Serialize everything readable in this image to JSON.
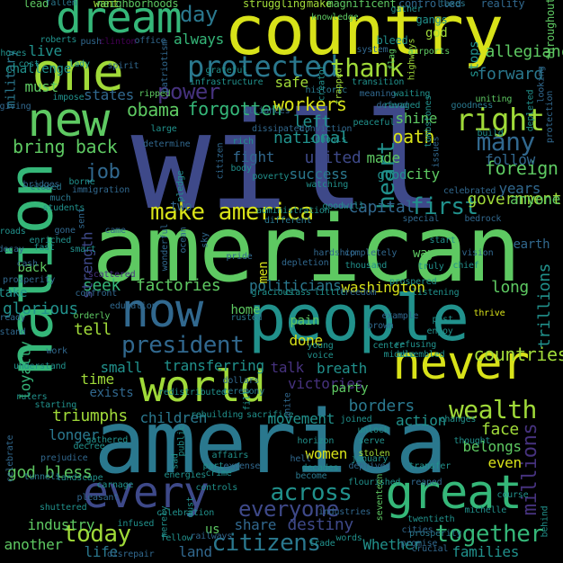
{
  "palette": {
    "background": "#000000",
    "yellow": "#d8e219",
    "lime": "#a0da39",
    "green": "#5ec962",
    "teal_green": "#35b779",
    "teal": "#21918c",
    "blue_teal": "#2a788e",
    "blue": "#31688e",
    "indigo": "#3e4989",
    "purple": "#46327e",
    "dark_purple": "#440154"
  },
  "words": [
    {
      "t": "will",
      "c": "indigo"
    },
    {
      "t": "american",
      "c": "green"
    },
    {
      "t": "america",
      "c": "blue_teal"
    },
    {
      "t": "country",
      "c": "yellow"
    },
    {
      "t": "people",
      "c": "teal"
    },
    {
      "t": "nation",
      "c": "teal_green"
    },
    {
      "t": "one",
      "c": "lime"
    },
    {
      "t": "dream",
      "c": "teal_green"
    },
    {
      "t": "new",
      "c": "green"
    },
    {
      "t": "great",
      "c": "teal_green"
    },
    {
      "t": "every",
      "c": "indigo"
    },
    {
      "t": "never",
      "c": "yellow"
    },
    {
      "t": "world",
      "c": "lime"
    },
    {
      "t": "now",
      "c": "blue"
    },
    {
      "t": "protected",
      "c": "blue_teal"
    },
    {
      "t": "right",
      "c": "lime"
    },
    {
      "t": "thank",
      "c": "lime"
    },
    {
      "t": "many",
      "c": "blue"
    },
    {
      "t": "president",
      "c": "blue"
    },
    {
      "t": "make america",
      "c": "yellow"
    },
    {
      "t": "citizens",
      "c": "blue_teal"
    },
    {
      "t": "today",
      "c": "lime"
    },
    {
      "t": "together",
      "c": "teal_green"
    },
    {
      "t": "across",
      "c": "teal"
    },
    {
      "t": "everyone",
      "c": "indigo"
    },
    {
      "t": "wealth",
      "c": "lime"
    },
    {
      "t": "heart",
      "c": "teal"
    },
    {
      "t": "first",
      "c": "teal"
    },
    {
      "t": "job",
      "c": "blue"
    },
    {
      "t": "day",
      "c": "blue_teal"
    },
    {
      "t": "power",
      "c": "purple"
    },
    {
      "t": "obama",
      "c": "green"
    },
    {
      "t": "forgotten",
      "c": "teal_green"
    },
    {
      "t": "workers",
      "c": "yellow"
    },
    {
      "t": "left",
      "c": "teal"
    },
    {
      "t": "national",
      "c": "teal"
    },
    {
      "t": "united",
      "c": "indigo"
    },
    {
      "t": "bring back",
      "c": "green"
    },
    {
      "t": "foreign",
      "c": "green"
    },
    {
      "t": "government",
      "c": "lime"
    },
    {
      "t": "forward",
      "c": "blue_teal"
    },
    {
      "t": "allegiance",
      "c": "green"
    },
    {
      "t": "must",
      "c": "green"
    },
    {
      "t": "always",
      "c": "teal_green"
    },
    {
      "t": "states",
      "c": "blue"
    },
    {
      "t": "fight",
      "c": "blue"
    },
    {
      "t": "oath",
      "c": "yellow"
    },
    {
      "t": "made",
      "c": "green"
    },
    {
      "t": "success",
      "c": "blue_teal"
    },
    {
      "t": "city",
      "c": "green"
    },
    {
      "t": "capital",
      "c": "blue"
    },
    {
      "t": "follow",
      "c": "blue"
    },
    {
      "t": "years",
      "c": "blue"
    },
    {
      "t": "anyone",
      "c": "green"
    },
    {
      "t": "earth",
      "c": "blue"
    },
    {
      "t": "glorious",
      "c": "teal"
    },
    {
      "t": "seek",
      "c": "teal_green"
    },
    {
      "t": "factories",
      "c": "green"
    },
    {
      "t": "politicians",
      "c": "blue_teal"
    },
    {
      "t": "washington",
      "c": "yellow"
    },
    {
      "t": "tell",
      "c": "lime"
    },
    {
      "t": "long",
      "c": "green"
    },
    {
      "t": "countries",
      "c": "lime"
    },
    {
      "t": "small",
      "c": "teal"
    },
    {
      "t": "transferring",
      "c": "teal"
    },
    {
      "t": "breath",
      "c": "teal"
    },
    {
      "t": "victories",
      "c": "purple"
    },
    {
      "t": "party",
      "c": "green"
    },
    {
      "t": "talk",
      "c": "purple"
    },
    {
      "t": "borders",
      "c": "blue_teal"
    },
    {
      "t": "action",
      "c": "teal"
    },
    {
      "t": "children",
      "c": "blue_teal"
    },
    {
      "t": "movement",
      "c": "teal"
    },
    {
      "t": "triumphs",
      "c": "lime"
    },
    {
      "t": "longer",
      "c": "blue_teal"
    },
    {
      "t": "god bless",
      "c": "green"
    },
    {
      "t": "women",
      "c": "yellow"
    },
    {
      "t": "face",
      "c": "lime"
    },
    {
      "t": "belongs",
      "c": "green"
    },
    {
      "t": "even",
      "c": "yellow"
    },
    {
      "t": "destiny",
      "c": "indigo"
    },
    {
      "t": "share",
      "c": "blue"
    },
    {
      "t": "land",
      "c": "blue"
    },
    {
      "t": "life",
      "c": "blue_teal"
    },
    {
      "t": "another",
      "c": "green"
    },
    {
      "t": "Whether",
      "c": "teal"
    },
    {
      "t": "families",
      "c": "teal"
    },
    {
      "t": "industry",
      "c": "green"
    },
    {
      "t": "loyalty",
      "c": "teal_green"
    },
    {
      "t": "time",
      "c": "lime"
    },
    {
      "t": "exists",
      "c": "blue"
    },
    {
      "t": "done",
      "c": "yellow"
    },
    {
      "t": "pain",
      "c": "green"
    },
    {
      "t": "back",
      "c": "green"
    },
    {
      "t": "take",
      "c": "teal"
    },
    {
      "t": "safe",
      "c": "lime"
    },
    {
      "t": "strength",
      "c": "indigo"
    },
    {
      "t": "men",
      "c": "yellow"
    },
    {
      "t": "two",
      "c": "blue"
    },
    {
      "t": "good",
      "c": "teal"
    },
    {
      "t": "way",
      "c": "green"
    },
    {
      "t": "trillions",
      "c": "teal"
    },
    {
      "t": "shine",
      "c": "green"
    },
    {
      "t": "millions",
      "c": "purple"
    },
    {
      "t": "home",
      "c": "green"
    },
    {
      "t": "us",
      "c": "green"
    },
    {
      "t": "live",
      "c": "teal"
    },
    {
      "t": "military",
      "c": "blue_teal"
    },
    {
      "t": "challenge",
      "c": "teal"
    },
    {
      "t": "god",
      "c": "lime"
    },
    {
      "t": "stops",
      "c": "teal"
    },
    {
      "t": "lead",
      "c": "green"
    },
    {
      "t": "want",
      "c": "lime"
    },
    {
      "t": "neighborhoods",
      "c": "green"
    },
    {
      "t": "struggling",
      "c": "lime"
    },
    {
      "t": "make",
      "c": "lime"
    },
    {
      "t": "magnificent",
      "c": "green"
    },
    {
      "t": "controlled",
      "c": "blue"
    },
    {
      "t": "reality",
      "c": "blue"
    },
    {
      "t": "throughout",
      "c": "green"
    },
    {
      "t": "fallen",
      "c": "blue_teal"
    },
    {
      "t": "knowledge",
      "c": "green"
    },
    {
      "t": "gangs",
      "c": "teal"
    },
    {
      "t": "taxes",
      "c": "blue_teal"
    },
    {
      "t": "bleed",
      "c": "teal"
    },
    {
      "t": "flag",
      "c": "green"
    },
    {
      "t": "highways",
      "c": "lime"
    },
    {
      "t": "airports",
      "c": "green"
    },
    {
      "t": "system",
      "c": "blue"
    },
    {
      "t": "gather",
      "c": "teal"
    },
    {
      "t": "uniting",
      "c": "green"
    },
    {
      "t": "infrastructure",
      "c": "teal"
    },
    {
      "t": "grateful",
      "c": "teal"
    },
    {
      "t": "historic",
      "c": "blue_teal"
    },
    {
      "t": "transition",
      "c": "teal"
    },
    {
      "t": "meaning",
      "c": "blue"
    },
    {
      "t": "defend",
      "c": "blue"
    },
    {
      "t": "peaceful",
      "c": "teal"
    },
    {
      "t": "goodness",
      "c": "blue_teal"
    },
    {
      "t": "build",
      "c": "teal"
    },
    {
      "t": "celebrated",
      "c": "blue"
    },
    {
      "t": "bridges",
      "c": "blue"
    },
    {
      "t": "enriched",
      "c": "teal"
    },
    {
      "t": "roads",
      "c": "teal"
    },
    {
      "t": "decay",
      "c": "blue"
    },
    {
      "t": "cash",
      "c": "blue"
    },
    {
      "t": "confront",
      "c": "blue"
    },
    {
      "t": "education",
      "c": "blue"
    },
    {
      "t": "orderly",
      "c": "green"
    },
    {
      "t": "work",
      "c": "blue"
    },
    {
      "t": "understand",
      "c": "teal"
    },
    {
      "t": "starting",
      "c": "teal"
    },
    {
      "t": "celebrate",
      "c": "blue"
    },
    {
      "t": "decree",
      "c": "teal"
    },
    {
      "t": "gathered",
      "c": "teal"
    },
    {
      "t": "prejudice",
      "c": "blue"
    },
    {
      "t": "landscape",
      "c": "teal"
    },
    {
      "t": "tunnels",
      "c": "blue_teal"
    },
    {
      "t": "shuttered",
      "c": "teal"
    },
    {
      "t": "infused",
      "c": "teal"
    },
    {
      "t": "pleasant",
      "c": "blue"
    },
    {
      "t": "students",
      "c": "teal"
    },
    {
      "t": "scattered",
      "c": "purple"
    },
    {
      "t": "rusted",
      "c": "blue_teal"
    },
    {
      "t": "dollars",
      "c": "blue"
    },
    {
      "t": "ceremony",
      "c": "blue_teal"
    },
    {
      "t": "rebuilding",
      "c": "teal"
    },
    {
      "t": "crime",
      "c": "teal"
    },
    {
      "t": "controls",
      "c": "teal"
    },
    {
      "t": "expense",
      "c": "blue"
    },
    {
      "t": "affairs",
      "c": "teal"
    },
    {
      "t": "horizon",
      "c": "teal"
    },
    {
      "t": "serve",
      "c": "teal"
    },
    {
      "t": "transfer",
      "c": "teal"
    },
    {
      "t": "stolen",
      "c": "lime"
    },
    {
      "t": "deprived",
      "c": "blue"
    },
    {
      "t": "reaped",
      "c": "blue"
    },
    {
      "t": "become",
      "c": "blue_teal"
    },
    {
      "t": "flourished",
      "c": "teal"
    },
    {
      "t": "decades",
      "c": "teal"
    },
    {
      "t": "seventeen",
      "c": "green"
    },
    {
      "t": "twentieth",
      "c": "teal"
    },
    {
      "t": "prosperity",
      "c": "blue_teal"
    },
    {
      "t": "trade",
      "c": "teal"
    },
    {
      "t": "words",
      "c": "teal"
    },
    {
      "t": "course",
      "c": "teal"
    },
    {
      "t": "behind",
      "c": "teal"
    },
    {
      "t": "michelle",
      "c": "teal"
    },
    {
      "t": "railways",
      "c": "blue"
    },
    {
      "t": "promise",
      "c": "blue"
    },
    {
      "t": "cities",
      "c": "blue"
    },
    {
      "t": "crucial",
      "c": "blue"
    },
    {
      "t": "office",
      "c": "blue"
    },
    {
      "t": "push",
      "c": "blue"
    },
    {
      "t": "clinton",
      "c": "dark_purple"
    },
    {
      "t": "roberts",
      "c": "teal"
    },
    {
      "t": "shores",
      "c": "teal"
    },
    {
      "t": "impose",
      "c": "teal"
    },
    {
      "t": "giving",
      "c": "blue"
    },
    {
      "t": "cost",
      "c": "teal"
    },
    {
      "t": "lady",
      "c": "teal"
    },
    {
      "t": "ripped",
      "c": "green"
    },
    {
      "t": "large",
      "c": "teal"
    },
    {
      "t": "determine",
      "c": "blue"
    },
    {
      "t": "dissipated",
      "c": "blue"
    },
    {
      "t": "conviction",
      "c": "blue"
    },
    {
      "t": "rich",
      "c": "teal"
    },
    {
      "t": "body",
      "c": "teal"
    },
    {
      "t": "poverty",
      "c": "teal"
    },
    {
      "t": "watching",
      "c": "teal"
    },
    {
      "t": "goodwill",
      "c": "teal"
    },
    {
      "t": "special",
      "c": "blue"
    },
    {
      "t": "bedrock",
      "c": "blue"
    },
    {
      "t": "administration",
      "c": "teal"
    },
    {
      "t": "different",
      "c": "blue_teal"
    },
    {
      "t": "hardship",
      "c": "blue"
    },
    {
      "t": "completely",
      "c": "blue"
    },
    {
      "t": "thousand",
      "c": "teal"
    },
    {
      "t": "truly",
      "c": "teal"
    },
    {
      "t": "start",
      "c": "teal"
    },
    {
      "t": "vision",
      "c": "blue"
    },
    {
      "t": "chief",
      "c": "teal"
    },
    {
      "t": "prospered",
      "c": "teal"
    },
    {
      "t": "listening",
      "c": "teal"
    },
    {
      "t": "gracious",
      "c": "teal"
    },
    {
      "t": "class",
      "c": "teal"
    },
    {
      "t": "little",
      "c": "teal"
    },
    {
      "t": "freedom",
      "c": "blue"
    },
    {
      "t": "brown",
      "c": "blue"
    },
    {
      "t": "example",
      "c": "blue"
    },
    {
      "t": "enjoy",
      "c": "teal"
    },
    {
      "t": "past",
      "c": "teal"
    },
    {
      "t": "thrive",
      "c": "yellow"
    },
    {
      "t": "young",
      "c": "teal"
    },
    {
      "t": "voice",
      "c": "teal"
    },
    {
      "t": "center",
      "c": "teal"
    },
    {
      "t": "refusing",
      "c": "teal"
    },
    {
      "t": "assembled",
      "c": "teal"
    },
    {
      "t": "middle",
      "c": "teal"
    },
    {
      "t": "joined",
      "c": "teal"
    },
    {
      "t": "unlock",
      "c": "teal"
    },
    {
      "t": "changes",
      "c": "teal"
    },
    {
      "t": "thought",
      "c": "teal"
    },
    {
      "t": "industries",
      "c": "blue"
    },
    {
      "t": "hell",
      "c": "blue"
    },
    {
      "t": "january",
      "c": "teal"
    },
    {
      "t": "public",
      "c": "teal"
    },
    {
      "t": "energies",
      "c": "teal"
    },
    {
      "t": "celebration",
      "c": "teal"
    },
    {
      "t": "merely",
      "c": "teal"
    },
    {
      "t": "redistributed",
      "c": "teal"
    },
    {
      "t": "wonderful",
      "c": "blue"
    },
    {
      "t": "ocean",
      "c": "blue"
    },
    {
      "t": "sky",
      "c": "blue"
    },
    {
      "t": "pride",
      "c": "blue"
    },
    {
      "t": "depletion",
      "c": "blue"
    },
    {
      "t": "immigration",
      "c": "blue"
    },
    {
      "t": "borne",
      "c": "teal"
    },
    {
      "t": "rulers",
      "c": "teal"
    },
    {
      "t": "closed",
      "c": "blue_teal"
    },
    {
      "t": "much",
      "c": "blue_teal"
    },
    {
      "t": "carnage",
      "c": "teal"
    },
    {
      "t": "fellow",
      "c": "teal"
    },
    {
      "t": "disrepair",
      "c": "blue"
    },
    {
      "t": "dust",
      "c": "teal"
    },
    {
      "t": "sad",
      "c": "teal"
    },
    {
      "t": "part",
      "c": "teal"
    },
    {
      "t": "sacrifice",
      "c": "teal"
    },
    {
      "t": "unite",
      "c": "blue"
    },
    {
      "t": "fill",
      "c": "teal"
    },
    {
      "t": "waiting",
      "c": "teal"
    },
    {
      "t": "ravaged",
      "c": "teal"
    },
    {
      "t": "alliances",
      "c": "blue"
    },
    {
      "t": "creator",
      "c": "teal"
    },
    {
      "t": "schools",
      "c": "teal"
    },
    {
      "t": "trapped",
      "c": "lime"
    },
    {
      "t": "citizen",
      "c": "blue"
    },
    {
      "t": "pledge",
      "c": "teal"
    },
    {
      "t": "patriotism",
      "c": "blue"
    },
    {
      "t": "spirit",
      "c": "blue"
    },
    {
      "t": "looking",
      "c": "blue"
    },
    {
      "t": "depleted",
      "c": "teal"
    },
    {
      "t": "protection",
      "c": "blue"
    },
    {
      "t": "prosperity",
      "c": "blue"
    },
    {
      "t": "sent",
      "c": "blue"
    },
    {
      "t": "fast",
      "c": "teal"
    },
    {
      "t": "gone",
      "c": "blue"
    },
    {
      "t": "smart",
      "c": "teal"
    },
    {
      "t": "stand",
      "c": "blue"
    },
    {
      "t": "ready",
      "c": "blue"
    },
    {
      "t": "came",
      "c": "blue"
    },
    {
      "t": "tombstones",
      "c": "teal"
    },
    {
      "t": "issues",
      "c": "blue"
    },
    {
      "t": "subsidized",
      "c": "blue"
    }
  ]
}
